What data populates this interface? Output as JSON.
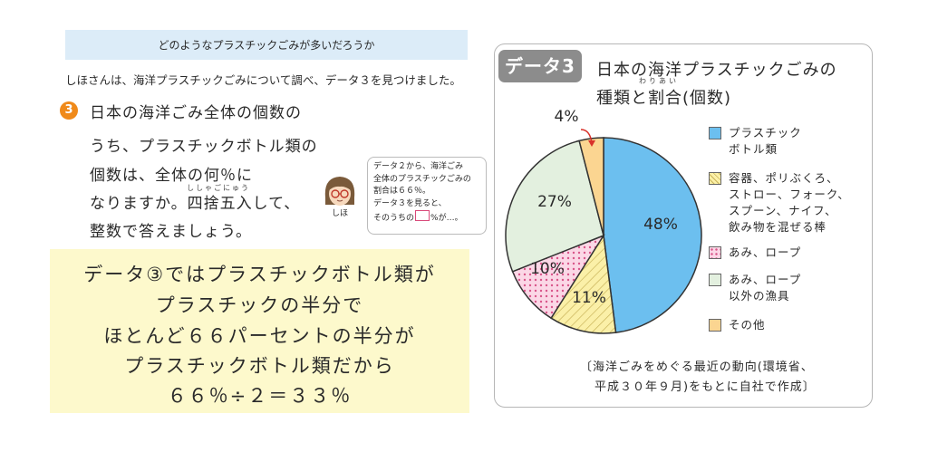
{
  "header": {
    "title": "どのようなプラスチックごみが多いだろうか"
  },
  "intro": "しほさんは、海洋プラスチックごみについて調べ、データ３を見つけました。",
  "question": {
    "number": "3",
    "lines": [
      "日本の海洋ごみ全体の個数の",
      "うち、プラスチックボトル類の",
      "個数は、全体の何％に",
      "なりますか。四捨五入して、",
      "整数で答えましょう。"
    ],
    "ruby": "ししゃごにゅう"
  },
  "hint": {
    "speaker": "しほ",
    "lines": [
      "データ２から、海洋ごみ",
      "全体のプラスチックごみの",
      "割合は６６％。",
      "データ３を見ると、"
    ],
    "last_before": "そのうちの",
    "last_after": "%が…。"
  },
  "note": {
    "lines": [
      "データ③ではプラスチックボトル類が",
      "プラスチックの半分で",
      "ほとんど６６パーセントの半分が",
      "プラスチックボトル類だから",
      "６６％÷２＝３３％"
    ]
  },
  "data_panel": {
    "tag": "データ3",
    "title_line1": "日本の海洋プラスチックごみの",
    "title_line2": "種類と割合(個数)",
    "title_ruby": "わりあい",
    "source_line1": "〔海洋ごみをめぐる最近の動向(環境省、",
    "source_line2": "平成３０年９月)をもとに自社で作成〕"
  },
  "chart_data": {
    "type": "pie",
    "title": "日本の海洋プラスチックごみの種類と割合(個数)",
    "categories": [
      "プラスチックボトル類",
      "容器、ポリぶくろ、ストロー、フォーク、スプーン、ナイフ、飲み物を混ぜる棒",
      "あみ、ロープ",
      "あみ、ロープ以外の漁具",
      "その他"
    ],
    "values": [
      48,
      11,
      10,
      27,
      4
    ],
    "labels": [
      "48%",
      "11%",
      "10%",
      "27%",
      "4%"
    ],
    "colors": [
      "#6cbfef",
      "#fbf0a8",
      "#fbd7e6",
      "#e3f0df",
      "#fbd591"
    ],
    "legend": {
      "placement": "right",
      "items": [
        "プラスチック\nボトル類",
        "容器、ポリぶくろ、\nストロー、フォーク、\nスプーン、ナイフ、\n飲み物を混ぜる棒",
        "あみ、ロープ",
        "あみ、ロープ\n以外の漁具",
        "その他"
      ]
    }
  }
}
